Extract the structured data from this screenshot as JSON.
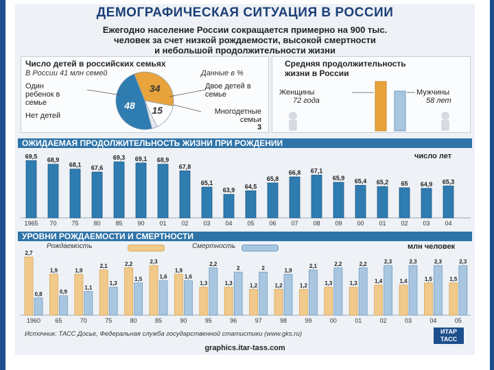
{
  "title": "ДЕМОГРАФИЧЕСКАЯ СИТУАЦИЯ В РОССИИ",
  "subtitle_lines": [
    "Ежегодно население России сокращается примерно на 900 тыс.",
    "человек за счет низкой рождаемости, высокой смертности",
    "и небольшой продолжительности жизни"
  ],
  "families": {
    "title": "Число детей в российских семьях",
    "note_left": "В России 41 млн семей",
    "note_right": "Данные в %",
    "label_one": "Один ребенок в семье",
    "label_none": "Нет детей",
    "label_two": "Двое детей в семье",
    "label_many": "Многодетные семьи",
    "value_many": "3"
  },
  "lifespan_gender": {
    "title_line1": "Средняя продолжительность",
    "title_line2": "жизни в России",
    "women_label": "Женщины",
    "women_value_text": "72 года",
    "men_label": "Мужчины",
    "men_value_text": "58 лет"
  },
  "section2": {
    "band": "ОЖИДАЕМАЯ ПРОДОЛЖИТЕЛЬНОСТЬ ЖИЗНИ ПРИ РОЖДЕНИИ",
    "unit": "число лет"
  },
  "section3": {
    "band": "УРОВНИ РОЖДАЕМОСТИ И СМЕРТНОСТИ",
    "unit": "млн человек",
    "legend_birth": "Рождаемость",
    "legend_death": "Смертность"
  },
  "source": "Источник: ТАСС Досье, Федеральная служба государственной статистики (www.gks.ru)",
  "url": "graphics.itar-tass.com",
  "logo_line1": "ИТАР",
  "logo_line2": "ТАСС",
  "colors": {
    "blue": "#2f7cb0",
    "light_blue": "#a9c6e0",
    "tan": "#f1c98a",
    "orange": "#e8a33c",
    "band": "#2f74a8"
  },
  "chart_data": [
    {
      "type": "pie",
      "categories": [
        "Один ребенок в семье",
        "Двое детей в семье",
        "Многодетные семьи",
        "Нет детей"
      ],
      "values": [
        34,
        15,
        3,
        48
      ],
      "labels": [
        "34",
        "15",
        "3",
        "48"
      ]
    },
    {
      "type": "bar",
      "categories": [
        "Женщины",
        "Мужчины"
      ],
      "values": [
        72,
        58
      ]
    },
    {
      "type": "bar",
      "categories": [
        "1965",
        "70",
        "75",
        "80",
        "85",
        "90",
        "01",
        "02",
        "03",
        "04",
        "05",
        "06",
        "07",
        "08",
        "09",
        "00",
        "01",
        "02",
        "03",
        "04"
      ],
      "values": [
        69.5,
        68.9,
        68.1,
        67.6,
        69.3,
        69.1,
        68.9,
        67.8,
        65.1,
        63.9,
        64.5,
        65.8,
        66.8,
        67.1,
        65.9,
        65.4,
        65.2,
        65,
        64.9,
        65.3
      ],
      "labels": [
        "69,5",
        "68,9",
        "68,1",
        "67,6",
        "69,3",
        "69,1",
        "68,9",
        "67,8",
        "65,1",
        "63,9",
        "64,5",
        "65,8",
        "66,8",
        "67,1",
        "65,9",
        "65,4",
        "65,2",
        "65",
        "64,9",
        "65,3"
      ],
      "ylim": [
        60,
        70
      ]
    },
    {
      "type": "bar",
      "categories": [
        "1960",
        "65",
        "70",
        "75",
        "80",
        "85",
        "90",
        "95",
        "96",
        "97",
        "98",
        "99",
        "00",
        "01",
        "02",
        "03",
        "04",
        "05"
      ],
      "series": [
        {
          "name": "Рождаемость",
          "values": [
            2.7,
            1.9,
            1.9,
            2.1,
            2.2,
            2.3,
            1.9,
            1.3,
            1.3,
            1.2,
            1.2,
            1.2,
            1.3,
            1.3,
            1.4,
            1.4,
            1.5,
            1.5
          ],
          "labels": [
            "2,7",
            "1,9",
            "1,9",
            "2,1",
            "2,2",
            "2,3",
            "1,9",
            "1,3",
            "1,3",
            "1,2",
            "1,2",
            "1,2",
            "1,3",
            "1,3",
            "1,4",
            "1,4",
            "1,5",
            "1,5"
          ]
        },
        {
          "name": "Смертность",
          "values": [
            0.8,
            0.9,
            1.1,
            1.3,
            1.5,
            1.6,
            1.6,
            2.2,
            2,
            2,
            1.9,
            2.1,
            2.2,
            2.2,
            2.3,
            2.3,
            2.3,
            2.3
          ],
          "labels": [
            "0,8",
            "0,9",
            "1,1",
            "1,3",
            "1,5",
            "1,6",
            "1,6",
            "2,2",
            "2",
            "2",
            "1,9",
            "2,1",
            "2,2",
            "2,2",
            "2,3",
            "2,3",
            "2,3",
            "2,3"
          ]
        }
      ],
      "ylim": [
        0,
        2.8
      ]
    }
  ]
}
